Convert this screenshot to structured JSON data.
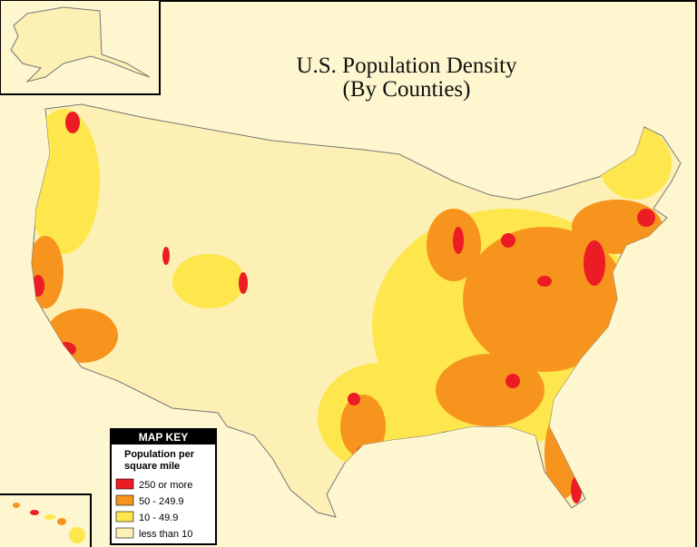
{
  "title": {
    "line1": "U.S. Population Density",
    "line2": "(By Counties)"
  },
  "map_key": {
    "title": "MAP KEY",
    "subtitle": [
      "Population per",
      "square mile"
    ],
    "entries": [
      {
        "label": "250 or more",
        "color": "#ec1c24"
      },
      {
        "label": "50 - 249.9",
        "color": "#f7941d"
      },
      {
        "label": "10 - 49.9",
        "color": "#fde74c"
      },
      {
        "label": "less than 10",
        "color": "#fdf0b4"
      }
    ]
  }
}
